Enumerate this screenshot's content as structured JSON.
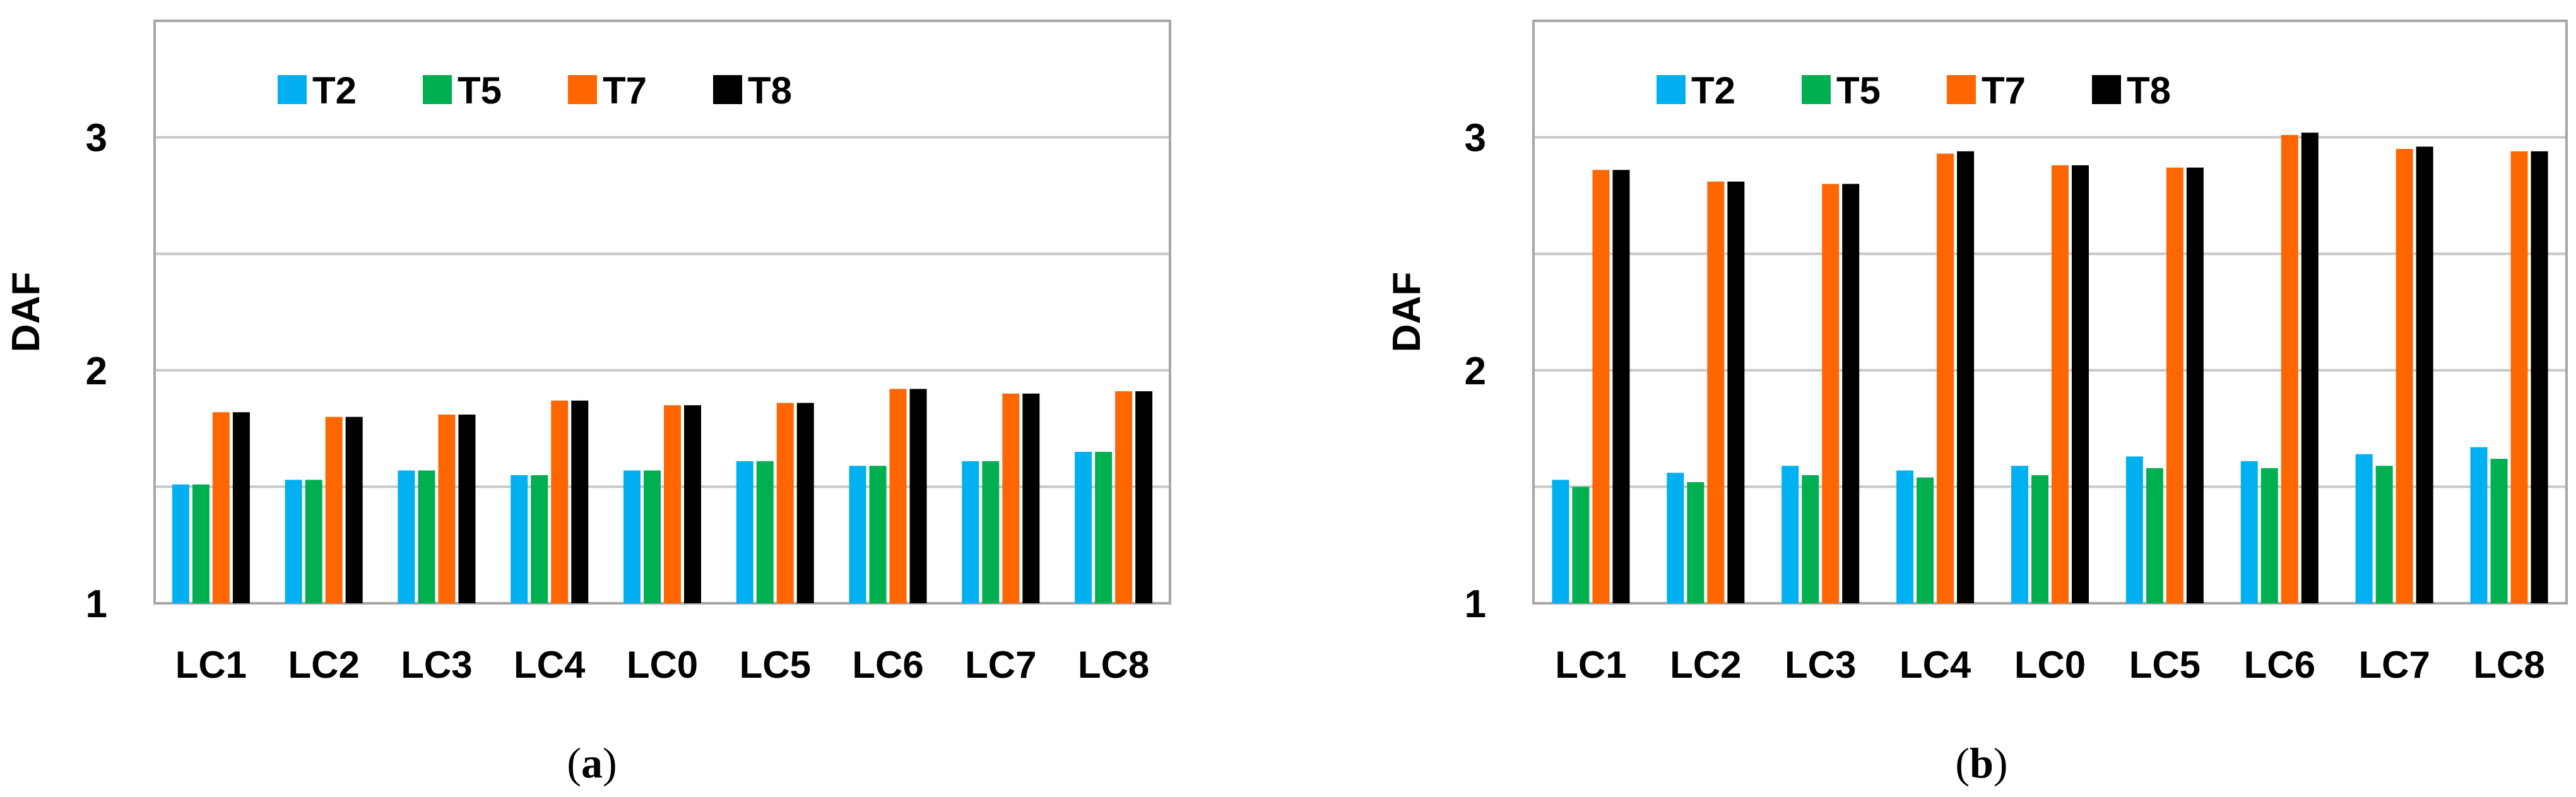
{
  "chart_data": [
    {
      "type": "bar",
      "panel_label": "(a)",
      "caption_letter": "a",
      "ylabel": "DAF",
      "xlabel": "",
      "ylim": [
        1,
        3.5
      ],
      "yticks": [
        1,
        2,
        3
      ],
      "grid": true,
      "legend_position": "top-left",
      "categories": [
        "LC1",
        "LC2",
        "LC3",
        "LC4",
        "LC0",
        "LC5",
        "LC6",
        "LC7",
        "LC8"
      ],
      "series": [
        {
          "name": "T2",
          "color": "#00B0F0",
          "values": [
            1.51,
            1.53,
            1.57,
            1.55,
            1.57,
            1.61,
            1.59,
            1.61,
            1.65
          ]
        },
        {
          "name": "T5",
          "color": "#00B050",
          "values": [
            1.51,
            1.53,
            1.57,
            1.55,
            1.57,
            1.61,
            1.59,
            1.61,
            1.65
          ]
        },
        {
          "name": "T7",
          "color": "#FF6600",
          "values": [
            1.82,
            1.8,
            1.81,
            1.87,
            1.85,
            1.86,
            1.92,
            1.9,
            1.91
          ]
        },
        {
          "name": "T8",
          "color": "#000000",
          "values": [
            1.82,
            1.8,
            1.81,
            1.87,
            1.85,
            1.86,
            1.92,
            1.9,
            1.91
          ]
        }
      ]
    },
    {
      "type": "bar",
      "panel_label": "(b)",
      "caption_letter": "b",
      "ylabel": "DAF",
      "xlabel": "",
      "ylim": [
        1,
        3.5
      ],
      "yticks": [
        1,
        2,
        3
      ],
      "grid": true,
      "legend_position": "top-left",
      "categories": [
        "LC1",
        "LC2",
        "LC3",
        "LC4",
        "LC0",
        "LC5",
        "LC6",
        "LC7",
        "LC8"
      ],
      "series": [
        {
          "name": "T2",
          "color": "#00B0F0",
          "values": [
            1.53,
            1.56,
            1.59,
            1.57,
            1.59,
            1.63,
            1.61,
            1.64,
            1.67
          ]
        },
        {
          "name": "T5",
          "color": "#00B050",
          "values": [
            1.5,
            1.52,
            1.55,
            1.54,
            1.55,
            1.58,
            1.58,
            1.59,
            1.62
          ]
        },
        {
          "name": "T7",
          "color": "#FF6600",
          "values": [
            2.86,
            2.81,
            2.8,
            2.93,
            2.88,
            2.87,
            3.01,
            2.95,
            2.94
          ]
        },
        {
          "name": "T8",
          "color": "#000000",
          "values": [
            2.86,
            2.81,
            2.8,
            2.94,
            2.88,
            2.87,
            3.02,
            2.96,
            2.94
          ]
        }
      ]
    }
  ]
}
